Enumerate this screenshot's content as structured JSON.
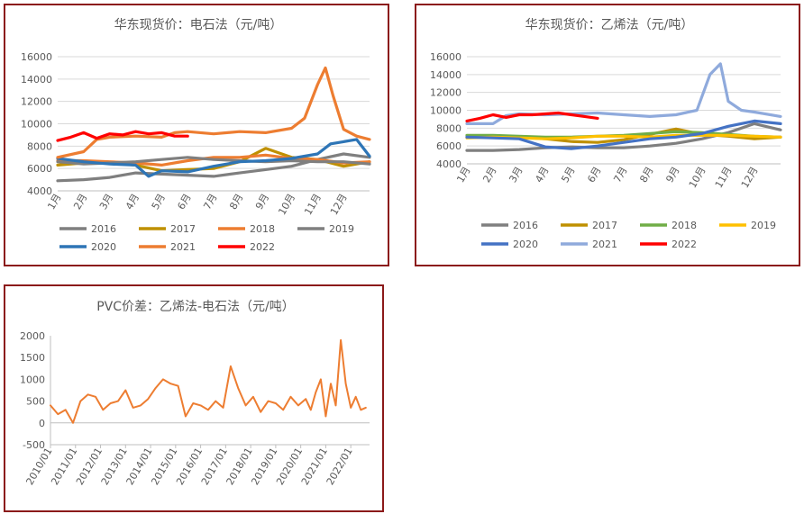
{
  "chart_data": [
    {
      "type": "line",
      "title": "华东现货价：电石法（元/吨）",
      "ylim": [
        4000,
        16000
      ],
      "yticks": [
        4000,
        6000,
        8000,
        10000,
        12000,
        14000,
        16000
      ],
      "xlabels": [
        "1月",
        "2月",
        "3月",
        "4月",
        "5月",
        "6月",
        "7月",
        "8月",
        "9月",
        "10月",
        "11月",
        "12月"
      ],
      "grid": true,
      "legend": "bottom",
      "series": [
        {
          "name": "2016",
          "color": "#7f7f7f",
          "x": [
            0,
            1,
            2,
            3,
            4,
            5,
            6,
            7,
            8,
            9,
            10,
            11,
            12
          ],
          "y": [
            4900,
            5000,
            5200,
            5600,
            5500,
            5400,
            5300,
            5600,
            5900,
            6200,
            6800,
            7300,
            7000
          ]
        },
        {
          "name": "2017",
          "color": "#bf9000",
          "x": [
            0,
            1,
            2,
            3,
            4,
            5,
            6,
            7,
            8,
            9,
            10,
            11,
            12
          ],
          "y": [
            6300,
            6500,
            6500,
            6300,
            5800,
            5900,
            6000,
            6600,
            7800,
            7000,
            6800,
            6200,
            6600
          ]
        },
        {
          "name": "2018",
          "color": "#ed7d31",
          "x": [
            0,
            1,
            2,
            3,
            4,
            5,
            6,
            7,
            8,
            9,
            10,
            11,
            12
          ],
          "y": [
            6700,
            6700,
            6600,
            6500,
            6300,
            6700,
            7000,
            7000,
            7200,
            6900,
            6800,
            6500,
            6600
          ]
        },
        {
          "name": "2019",
          "color": "#7f7f7f",
          "x": [
            0,
            1,
            2,
            3,
            4,
            5,
            6,
            7,
            8,
            9,
            10,
            11,
            12
          ],
          "y": [
            6600,
            6400,
            6500,
            6600,
            6800,
            7000,
            6800,
            6700,
            6600,
            6700,
            6600,
            6600,
            6400
          ]
        },
        {
          "name": "2020",
          "color": "#2e75b6",
          "x": [
            0,
            1,
            2,
            3,
            3.5,
            4,
            5,
            6,
            7,
            8,
            9,
            10,
            10.5,
            11,
            11.5,
            12
          ],
          "y": [
            6900,
            6600,
            6400,
            6300,
            5300,
            5800,
            5700,
            6200,
            6600,
            6700,
            6900,
            7300,
            8200,
            8400,
            8600,
            7100
          ]
        },
        {
          "name": "2021",
          "color": "#ed7d31",
          "x": [
            0,
            1,
            1.5,
            2,
            3,
            4,
            4.5,
            5,
            6,
            7,
            8,
            9,
            9.5,
            10,
            10.3,
            10.6,
            11,
            11.5,
            12
          ],
          "y": [
            7000,
            7500,
            8600,
            8800,
            8900,
            8800,
            9200,
            9300,
            9100,
            9300,
            9200,
            9600,
            10500,
            13500,
            15000,
            12500,
            9500,
            8900,
            8600
          ]
        },
        {
          "name": "2022",
          "color": "#ff0000",
          "x": [
            0,
            0.5,
            1,
            1.5,
            2,
            2.5,
            3,
            3.5,
            4,
            4.5,
            5
          ],
          "y": [
            8500,
            8800,
            9200,
            8700,
            9100,
            9000,
            9300,
            9100,
            9200,
            8900,
            8900
          ]
        }
      ]
    },
    {
      "type": "line",
      "title": "华东现货价：乙烯法（元/吨）",
      "ylim": [
        4000,
        16000
      ],
      "yticks": [
        4000,
        6000,
        8000,
        10000,
        12000,
        14000,
        16000
      ],
      "xlabels": [
        "1月",
        "2月",
        "3月",
        "4月",
        "5月",
        "6月",
        "7月",
        "8月",
        "9月",
        "10月",
        "11月",
        "12月"
      ],
      "grid": true,
      "legend": "bottom",
      "series": [
        {
          "name": "2016",
          "color": "#7f7f7f",
          "x": [
            0,
            1,
            2,
            3,
            4,
            5,
            6,
            7,
            8,
            9,
            10,
            11,
            12
          ],
          "y": [
            5500,
            5500,
            5600,
            5800,
            5900,
            5800,
            5800,
            6000,
            6300,
            6800,
            7500,
            8500,
            7800
          ]
        },
        {
          "name": "2017",
          "color": "#bf9000",
          "x": [
            0,
            1,
            2,
            3,
            4,
            5,
            6,
            7,
            8,
            9,
            10,
            11,
            12
          ],
          "y": [
            7000,
            7000,
            7000,
            6800,
            6500,
            6400,
            6700,
            7300,
            7900,
            7300,
            7100,
            6800,
            7000
          ]
        },
        {
          "name": "2018",
          "color": "#70ad47",
          "x": [
            0,
            1,
            2,
            3,
            4,
            5,
            6,
            7,
            8,
            9,
            10,
            11,
            12
          ],
          "y": [
            7200,
            7200,
            7100,
            7000,
            7000,
            7100,
            7200,
            7400,
            7600,
            7500,
            7300,
            7100,
            7000
          ]
        },
        {
          "name": "2019",
          "color": "#ffc000",
          "x": [
            0,
            1,
            2,
            3,
            4,
            5,
            6,
            7,
            8,
            9,
            10,
            11,
            12
          ],
          "y": [
            6900,
            7000,
            6900,
            6800,
            6900,
            7100,
            7100,
            7000,
            7200,
            7200,
            7200,
            7100,
            7000
          ]
        },
        {
          "name": "2020",
          "color": "#4472c4",
          "x": [
            0,
            1,
            2,
            3,
            4,
            5,
            6,
            7,
            8,
            9,
            10,
            11,
            12
          ],
          "y": [
            7000,
            6900,
            6800,
            5900,
            5700,
            6000,
            6400,
            6800,
            7000,
            7400,
            8200,
            8800,
            8500
          ]
        },
        {
          "name": "2021",
          "color": "#8faadc",
          "x": [
            0,
            1,
            1.5,
            2,
            3,
            4,
            5,
            6,
            7,
            8,
            8.8,
            9.3,
            9.7,
            10,
            10.5,
            11,
            12
          ],
          "y": [
            8500,
            8500,
            9400,
            9600,
            9500,
            9600,
            9700,
            9500,
            9300,
            9500,
            10000,
            14000,
            15200,
            11000,
            10000,
            9800,
            9300
          ]
        },
        {
          "name": "2022",
          "color": "#ff0000",
          "x": [
            0,
            0.5,
            1,
            1.5,
            2,
            2.5,
            3,
            3.5,
            4,
            4.5,
            5
          ],
          "y": [
            8800,
            9100,
            9500,
            9200,
            9500,
            9500,
            9600,
            9700,
            9500,
            9300,
            9100
          ]
        }
      ]
    },
    {
      "type": "line",
      "title": "PVC价差：乙烯法-电石法（元/吨）",
      "ylim": [
        -500,
        2000
      ],
      "yticks": [
        -500,
        0,
        500,
        1000,
        1500,
        2000
      ],
      "xlabels": [
        "2010/01",
        "2011/01",
        "2012/01",
        "2013/01",
        "2014/01",
        "2015/01",
        "2016/01",
        "2017/01",
        "2018/01",
        "2019/01",
        "2020/01",
        "2021/01",
        "2022/01"
      ],
      "grid": false,
      "series": [
        {
          "name": "",
          "color": "#ed7d31",
          "x": [
            0,
            0.3,
            0.6,
            0.9,
            1.2,
            1.5,
            1.8,
            2.1,
            2.4,
            2.7,
            3.0,
            3.3,
            3.6,
            3.9,
            4.2,
            4.5,
            4.8,
            5.1,
            5.4,
            5.7,
            6.0,
            6.3,
            6.6,
            6.9,
            7.2,
            7.5,
            7.8,
            8.1,
            8.4,
            8.7,
            9.0,
            9.3,
            9.6,
            9.9,
            10.2,
            10.4,
            10.6,
            10.8,
            11.0,
            11.2,
            11.4,
            11.6,
            11.8,
            12.0,
            12.2,
            12.4,
            12.6
          ],
          "y": [
            400,
            200,
            300,
            0,
            500,
            650,
            600,
            300,
            450,
            500,
            750,
            350,
            400,
            550,
            800,
            1000,
            900,
            850,
            150,
            450,
            400,
            300,
            500,
            350,
            1300,
            800,
            400,
            600,
            250,
            500,
            450,
            300,
            600,
            400,
            550,
            300,
            700,
            1000,
            150,
            900,
            400,
            1900,
            900,
            350,
            600,
            300,
            350
          ]
        }
      ]
    }
  ]
}
